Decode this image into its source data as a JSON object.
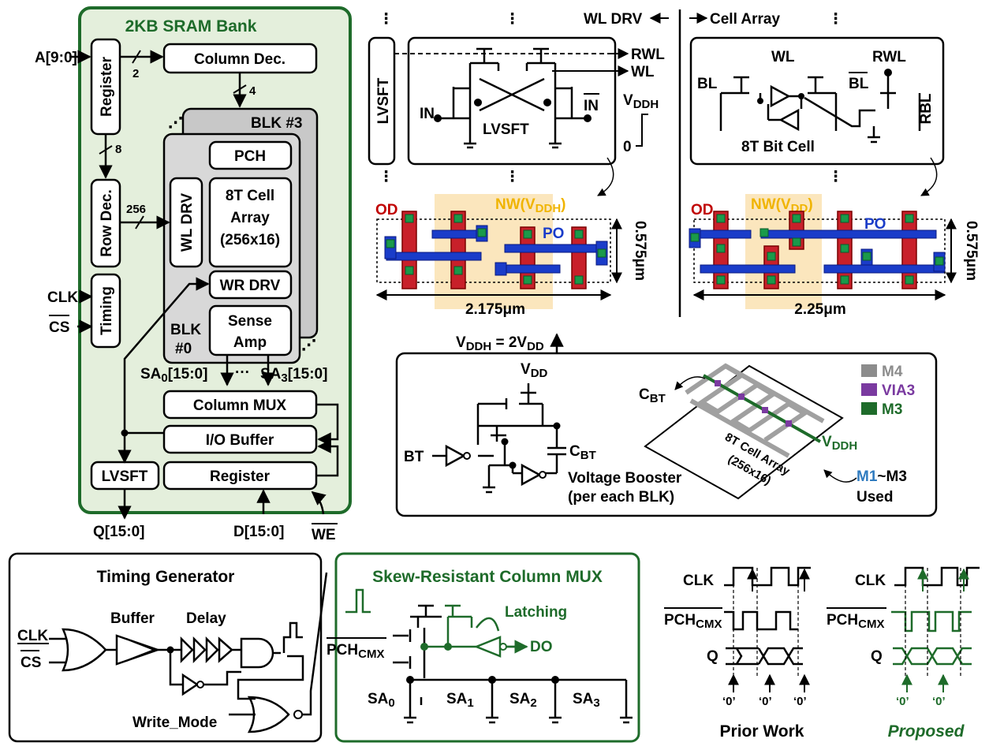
{
  "sram": {
    "title": "2KB SRAM Bank",
    "addr_in": "A[9:0]",
    "register": "Register",
    "bus2": "2",
    "column_dec": "Column Dec.",
    "bus4": "4",
    "blk3": "BLK #3",
    "pch": "PCH",
    "bus8": "8",
    "row_dec": "Row Dec.",
    "bus256": "256",
    "wl_drv": "WL DRV",
    "cell_array_l1": "8T Cell",
    "cell_array_l2": "Array",
    "cell_array_l3": "(256x16)",
    "wr_drv": "WR DRV",
    "sense_l1": "Sense",
    "sense_l2": "Amp",
    "blk0_l1": "BLK",
    "blk0_l2": "#0",
    "clk": "CLK",
    "cs": "CS",
    "timing": "Timing",
    "sa0": "SA",
    "sa0_sub": "0",
    "sa0_range": "[15:0]",
    "sa_dots": "···",
    "sa3": "SA",
    "sa3_sub": "3",
    "sa3_range": "[15:0]",
    "column_mux": "Column MUX",
    "io_buffer": "I/O Buffer",
    "lvsft": "LVSFT",
    "register_bottom": "Register",
    "q_out": "Q[15:0]",
    "d_in": "D[15:0]",
    "we": "WE"
  },
  "wl_driver": {
    "header_left": "WL DRV",
    "header_right": "Cell Array",
    "lvsft_block": "LVSFT",
    "rwl": "RWL",
    "wl": "WL",
    "in": "IN",
    "in_bar": "IN",
    "lvsft_label": "LVSFT",
    "vddh_v": "V",
    "vddh_sub": "DDH",
    "zero": "0",
    "od": "OD",
    "nw": "NW(V",
    "nw_sub": "DDH",
    "nw_close": ")",
    "po": "PO",
    "height": "0.575μm",
    "width": "2.175μm"
  },
  "bitcell": {
    "wl": "WL",
    "rwl": "RWL",
    "bl": "BL",
    "bl_bar": "BL",
    "rbl": "RBL",
    "label": "8T Bit Cell",
    "od": "OD",
    "nw": "NW(V",
    "nw_sub": "DD",
    "nw_close": ")",
    "po": "PO",
    "height": "0.575μm",
    "width": "2.25μm"
  },
  "booster": {
    "vddh_eq_a": "V",
    "vddh_eq_sub": "DDH",
    "vddh_eq_b": " = 2V",
    "vddh_eq_sub2": "DD",
    "vdd": "V",
    "vdd_sub": "DD",
    "bt": "BT",
    "cbt": "C",
    "cbt_sub": "BT",
    "title_l1": "Voltage Booster",
    "title_l2": "(per each BLK)",
    "cbt2": "C",
    "cbt2_sub": "BT",
    "m4": "M4",
    "via3": "VIA3",
    "m3": "M3",
    "vddh": "V",
    "vddh_sub": "DDH",
    "array_l1": "8T Cell Array",
    "array_l2": "(256x16)",
    "m1m3_a": "M1",
    "m1m3_b": "~M3",
    "used": "Used",
    "colors": {
      "m4": "#8c8c8c",
      "via3": "#7a3aa0",
      "m3": "#1e6b2a"
    }
  },
  "timing_gen": {
    "title": "Timing Generator",
    "clk": "CLK",
    "cs": "CS",
    "buffer": "Buffer",
    "delay": "Delay",
    "write_mode": "Write_Mode"
  },
  "mux": {
    "title": "Skew-Resistant Column MUX",
    "latching": "Latching",
    "do": "DO",
    "pch": "PCH",
    "pch_sub": "CMX",
    "sa": [
      "SA",
      "SA",
      "SA",
      "SA"
    ],
    "sa_sub": [
      "0",
      "1",
      "2",
      "3"
    ]
  },
  "waves": {
    "clk": "CLK",
    "pch": "PCH",
    "pch_sub": "CMX",
    "q": "Q",
    "zero": "‘0’",
    "prior": "Prior Work",
    "proposed": "Proposed"
  }
}
